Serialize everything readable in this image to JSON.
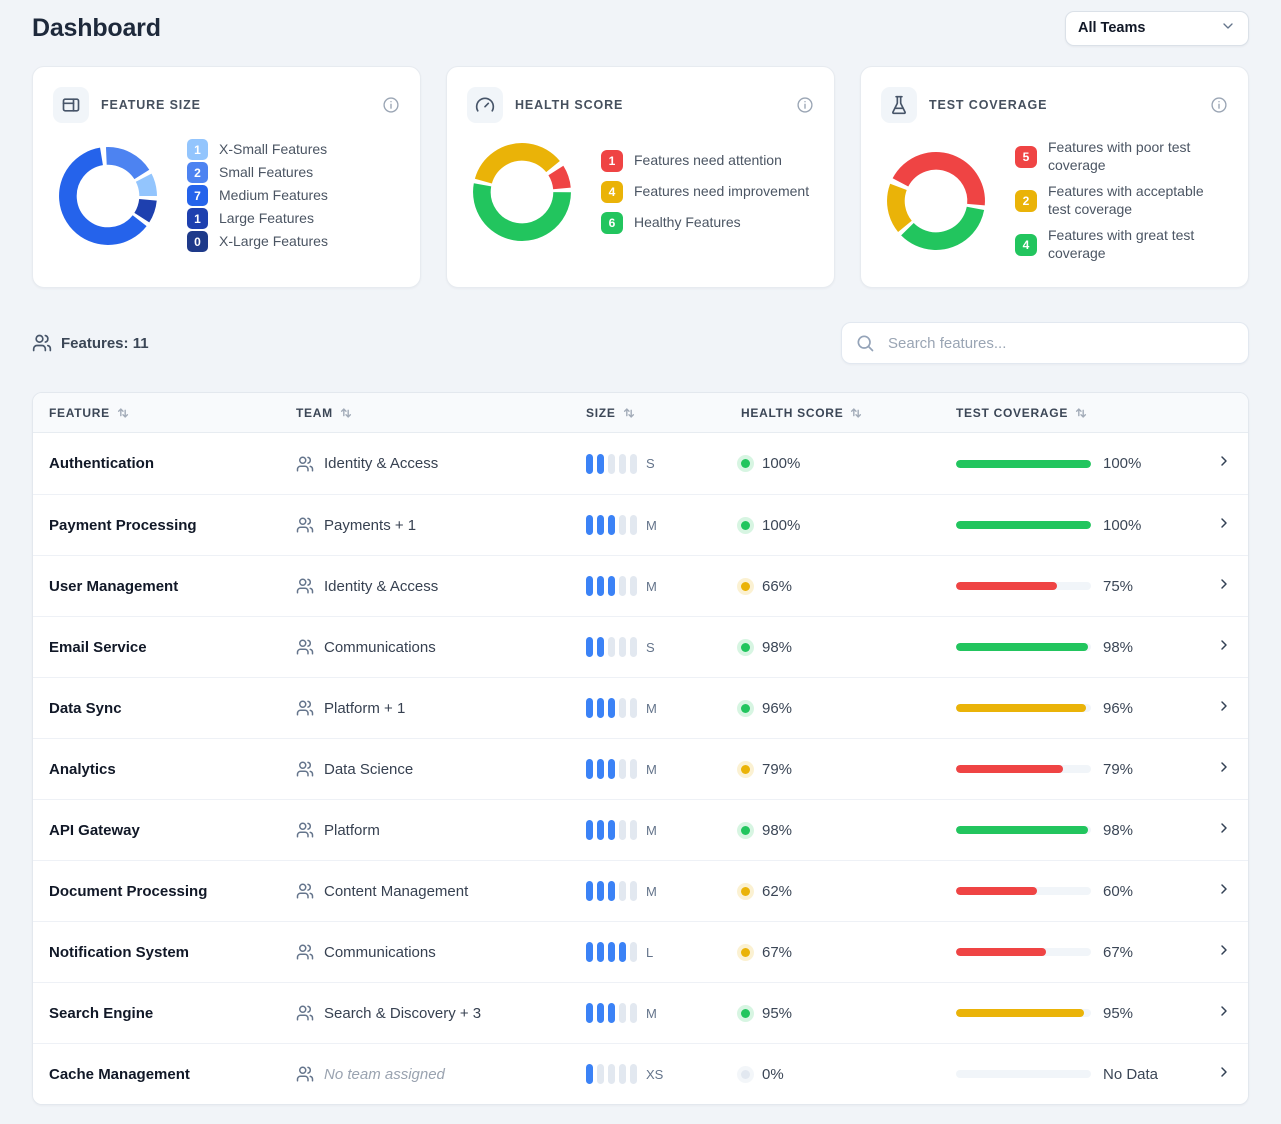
{
  "header": {
    "title": "Dashboard"
  },
  "team_filter": {
    "value": "All Teams"
  },
  "cards": [
    {
      "title": "FEATURE SIZE",
      "icon": "panel-icon",
      "legend": [
        {
          "count": "1",
          "label": "X-Small Features",
          "color": "#93c5fd"
        },
        {
          "count": "2",
          "label": "Small Features",
          "color": "#4d83f1"
        },
        {
          "count": "7",
          "label": "Medium Features",
          "color": "#2563eb"
        },
        {
          "count": "1",
          "label": "Large Features",
          "color": "#1e40af"
        },
        {
          "count": "0",
          "label": "X-Large Features",
          "color": "#1e3a8a"
        }
      ]
    },
    {
      "title": "HEALTH SCORE",
      "icon": "gauge-icon",
      "legend": [
        {
          "count": "1",
          "label": "Features need attention",
          "color": "#ef4444"
        },
        {
          "count": "4",
          "label": "Features need improvement",
          "color": "#eab308"
        },
        {
          "count": "6",
          "label": "Healthy Features",
          "color": "#22c55e"
        }
      ]
    },
    {
      "title": "TEST COVERAGE",
      "icon": "flask-icon",
      "legend": [
        {
          "count": "5",
          "label": "Features with poor test coverage",
          "color": "#ef4444"
        },
        {
          "count": "2",
          "label": "Features with acceptable test coverage",
          "color": "#eab308"
        },
        {
          "count": "4",
          "label": "Features with great test coverage",
          "color": "#22c55e"
        }
      ]
    }
  ],
  "chart_data": [
    {
      "type": "donut",
      "title": "Feature Size",
      "total": 11,
      "start_angle": -5,
      "segments": [
        {
          "label": "Small Features",
          "value": 2,
          "color": "#4d83f1"
        },
        {
          "label": "X-Small Features",
          "value": 1,
          "color": "#93c5fd"
        },
        {
          "label": "Large Features",
          "value": 1,
          "color": "#1e40af"
        },
        {
          "label": "Medium Features",
          "value": 7,
          "color": "#2563eb"
        },
        {
          "label": "X-Large Features",
          "value": 0,
          "color": "#1e3a8a"
        }
      ]
    },
    {
      "type": "donut",
      "title": "Health Score",
      "total": 11,
      "start_angle": 55,
      "segments": [
        {
          "label": "Features need attention",
          "value": 1,
          "color": "#ef4444"
        },
        {
          "label": "Healthy Features",
          "value": 6,
          "color": "#22c55e"
        },
        {
          "label": "Features need improvement",
          "value": 4,
          "color": "#eab308"
        }
      ]
    },
    {
      "type": "donut",
      "title": "Test Coverage",
      "total": 11,
      "start_angle": 295,
      "segments": [
        {
          "label": "Features with poor test coverage",
          "value": 5,
          "color": "#ef4444"
        },
        {
          "label": "Features with great test coverage",
          "value": 4,
          "color": "#22c55e"
        },
        {
          "label": "Features with acceptable test coverage",
          "value": 2,
          "color": "#eab308"
        }
      ]
    }
  ],
  "toolbar": {
    "features_label": "Features: 11",
    "search_placeholder": "Search features..."
  },
  "table": {
    "columns": [
      {
        "label": "FEATURE"
      },
      {
        "label": "TEAM"
      },
      {
        "label": "SIZE"
      },
      {
        "label": "HEALTH SCORE"
      },
      {
        "label": "TEST COVERAGE"
      }
    ],
    "size_scale_max": 5,
    "rows": [
      {
        "feature": "Authentication",
        "team": "Identity & Access",
        "no_team": false,
        "size_label": "S",
        "size_level": 2,
        "health_label": "100%",
        "health_color": "#22c55e",
        "coverage_value": 100,
        "coverage_label": "100%",
        "coverage_color": "#22c55e"
      },
      {
        "feature": "Payment Processing",
        "team": "Payments + 1",
        "no_team": false,
        "size_label": "M",
        "size_level": 3,
        "health_label": "100%",
        "health_color": "#22c55e",
        "coverage_value": 100,
        "coverage_label": "100%",
        "coverage_color": "#22c55e"
      },
      {
        "feature": "User Management",
        "team": "Identity & Access",
        "no_team": false,
        "size_label": "M",
        "size_level": 3,
        "health_label": "66%",
        "health_color": "#eab308",
        "coverage_value": 75,
        "coverage_label": "75%",
        "coverage_color": "#ef4444"
      },
      {
        "feature": "Email Service",
        "team": "Communications",
        "no_team": false,
        "size_label": "S",
        "size_level": 2,
        "health_label": "98%",
        "health_color": "#22c55e",
        "coverage_value": 98,
        "coverage_label": "98%",
        "coverage_color": "#22c55e"
      },
      {
        "feature": "Data Sync",
        "team": "Platform + 1",
        "no_team": false,
        "size_label": "M",
        "size_level": 3,
        "health_label": "96%",
        "health_color": "#22c55e",
        "coverage_value": 96,
        "coverage_label": "96%",
        "coverage_color": "#eab308"
      },
      {
        "feature": "Analytics",
        "team": "Data Science",
        "no_team": false,
        "size_label": "M",
        "size_level": 3,
        "health_label": "79%",
        "health_color": "#eab308",
        "coverage_value": 79,
        "coverage_label": "79%",
        "coverage_color": "#ef4444"
      },
      {
        "feature": "API Gateway",
        "team": "Platform",
        "no_team": false,
        "size_label": "M",
        "size_level": 3,
        "health_label": "98%",
        "health_color": "#22c55e",
        "coverage_value": 98,
        "coverage_label": "98%",
        "coverage_color": "#22c55e"
      },
      {
        "feature": "Document Processing",
        "team": "Content Management",
        "no_team": false,
        "size_label": "M",
        "size_level": 3,
        "health_label": "62%",
        "health_color": "#eab308",
        "coverage_value": 60,
        "coverage_label": "60%",
        "coverage_color": "#ef4444"
      },
      {
        "feature": "Notification System",
        "team": "Communications",
        "no_team": false,
        "size_label": "L",
        "size_level": 4,
        "health_label": "67%",
        "health_color": "#eab308",
        "coverage_value": 67,
        "coverage_label": "67%",
        "coverage_color": "#ef4444"
      },
      {
        "feature": "Search Engine",
        "team": "Search & Discovery + 3",
        "no_team": false,
        "size_label": "M",
        "size_level": 3,
        "health_label": "95%",
        "health_color": "#22c55e",
        "coverage_value": 95,
        "coverage_label": "95%",
        "coverage_color": "#eab308"
      },
      {
        "feature": "Cache Management",
        "team": "No team assigned",
        "no_team": true,
        "size_label": "XS",
        "size_level": 1,
        "health_label": "0%",
        "health_color": "#e2e8f0",
        "coverage_value": 0,
        "coverage_label": "No Data",
        "coverage_color": "#e2e8f0"
      }
    ]
  }
}
